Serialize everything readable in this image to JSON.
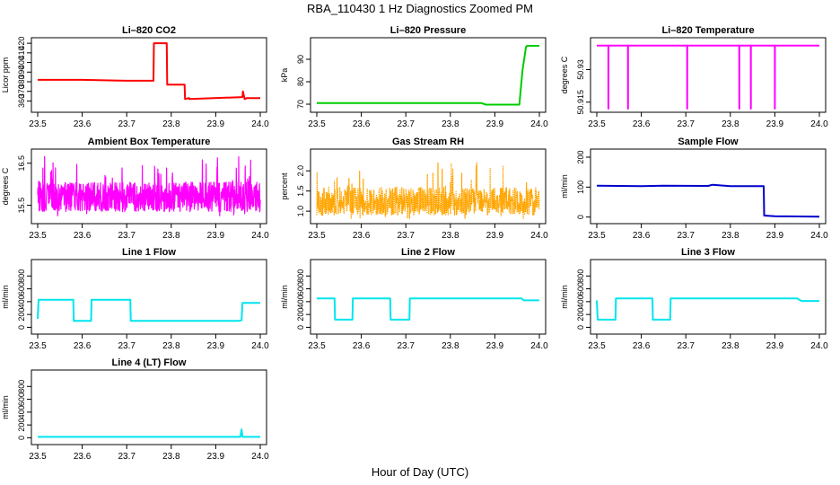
{
  "page": {
    "title": "RBA_110430  1 Hz Diagnostics Zoomed PM",
    "xlabel": "Hour of Day (UTC)"
  },
  "chart_data": [
    {
      "type": "line",
      "title": "Li–820 CO2",
      "ylabel": "Licor ppm",
      "color": "#ff0000",
      "xlim": [
        23.5,
        24.0
      ],
      "ylim": [
        352,
        422
      ],
      "yticks": [
        360,
        370,
        380,
        390,
        400,
        410,
        420
      ],
      "xticks": [
        "23.5",
        "23.6",
        "23.7",
        "23.8",
        "23.9",
        "24.0"
      ],
      "series": [
        {
          "x": [
            23.5,
            23.6,
            23.7,
            23.76,
            23.761,
            23.79,
            23.791,
            23.83,
            23.831,
            23.84,
            23.841,
            23.96,
            23.961,
            23.965,
            23.97,
            24.0
          ],
          "y": [
            382,
            382,
            381,
            381,
            420,
            420,
            377,
            377,
            362,
            363,
            362,
            364,
            370,
            362,
            363,
            363
          ]
        }
      ]
    },
    {
      "type": "line",
      "title": "Li–820 Pressure",
      "ylabel": "kPa",
      "color": "#00cc00",
      "xlim": [
        23.5,
        24.0
      ],
      "ylim": [
        68,
        98
      ],
      "yticks": [
        70,
        80,
        90
      ],
      "xticks": [
        "23.5",
        "23.6",
        "23.7",
        "23.8",
        "23.9",
        "24.0"
      ],
      "series": [
        {
          "x": [
            23.5,
            23.87,
            23.88,
            23.955,
            23.962,
            23.97,
            23.972,
            24.0
          ],
          "y": [
            70.5,
            70.5,
            69.8,
            69.8,
            85,
            95.5,
            96,
            96
          ]
        }
      ]
    },
    {
      "type": "line",
      "title": "Li–820 Temperature",
      "ylabel": "degrees C",
      "color": "#ff00ff",
      "xlim": [
        23.5,
        24.0
      ],
      "ylim": [
        50.912,
        50.943
      ],
      "yticks": [
        50.915,
        50.93
      ],
      "xticks": [
        "23.5",
        "23.6",
        "23.7",
        "23.8",
        "23.9",
        "24.0"
      ],
      "series": [
        {
          "x": [
            23.5,
            23.526,
            23.5261,
            23.5262,
            23.527,
            23.57,
            23.5701,
            23.5702,
            23.703,
            23.7031,
            23.7032,
            23.82,
            23.8201,
            23.8202,
            23.846,
            23.8461,
            23.8462,
            23.9,
            23.9001,
            23.9002,
            24.0
          ],
          "y": [
            50.941,
            50.941,
            50.912,
            50.941,
            50.941,
            50.941,
            50.912,
            50.941,
            50.941,
            50.912,
            50.941,
            50.941,
            50.912,
            50.941,
            50.941,
            50.912,
            50.941,
            50.941,
            50.912,
            50.941,
            50.941
          ]
        }
      ]
    },
    {
      "type": "line",
      "title": "Ambient Box Temperature",
      "ylabel": "degrees C",
      "color": "#ff00ff",
      "xlim": [
        23.5,
        24.0
      ],
      "ylim": [
        15.15,
        16.75
      ],
      "yticks": [
        15.5,
        16.5
      ],
      "xticks": [
        "23.5",
        "23.6",
        "23.7",
        "23.8",
        "23.9",
        "24.0"
      ],
      "noise": {
        "base": 15.7,
        "amp": 0.35,
        "spike": 1.0,
        "lo": 15.25,
        "hi": 16.7
      }
    },
    {
      "type": "line",
      "title": "Gas Stream RH",
      "ylabel": "percent",
      "color": "#ffa500",
      "xlim": [
        23.5,
        24.0
      ],
      "ylim": [
        0.78,
        2.45
      ],
      "yticks": [
        1.0,
        1.5,
        2.0
      ],
      "xticks": [
        "23.5",
        "23.6",
        "23.7",
        "23.8",
        "23.9",
        "24.0"
      ],
      "noise": {
        "base": 1.25,
        "amp": 0.35,
        "spike": 1.1,
        "lo": 0.82,
        "hi": 2.38
      }
    },
    {
      "type": "line",
      "title": "Sample Flow",
      "ylabel": "ml/min",
      "color": "#0000cc",
      "xlim": [
        23.5,
        24.0
      ],
      "ylim": [
        -10,
        215
      ],
      "yticks": [
        0,
        100,
        200
      ],
      "xticks": [
        "23.5",
        "23.6",
        "23.7",
        "23.8",
        "23.9",
        "24.0"
      ],
      "series": [
        {
          "x": [
            23.5,
            23.6,
            23.65,
            23.75,
            23.76,
            23.8,
            23.875,
            23.876,
            23.9,
            24.0
          ],
          "y": [
            105,
            103,
            105,
            104,
            108,
            103,
            103,
            5,
            3,
            1
          ]
        }
      ]
    },
    {
      "type": "line",
      "title": "Line 1 Flow",
      "ylabel": "ml/min",
      "color": "#00e5ee",
      "xlim": [
        23.5,
        24.0
      ],
      "ylim": [
        -50,
        1000
      ],
      "yticks": [
        0,
        200,
        400,
        600,
        800
      ],
      "xticks": [
        "23.5",
        "23.6",
        "23.7",
        "23.8",
        "23.9",
        "24.0"
      ],
      "series": [
        {
          "x": [
            23.5,
            23.502,
            23.58,
            23.581,
            23.62,
            23.621,
            23.708,
            23.709,
            23.95,
            23.958,
            23.96,
            24.0
          ],
          "y": [
            130,
            430,
            430,
            100,
            100,
            430,
            430,
            100,
            100,
            110,
            380,
            380
          ]
        }
      ]
    },
    {
      "type": "line",
      "title": "Line 2 Flow",
      "ylabel": "ml/min",
      "color": "#00e5ee",
      "xlim": [
        23.5,
        24.0
      ],
      "ylim": [
        -50,
        1000
      ],
      "yticks": [
        0,
        200,
        400,
        600,
        800
      ],
      "xticks": [
        "23.5",
        "23.6",
        "23.7",
        "23.8",
        "23.9",
        "24.0"
      ],
      "series": [
        {
          "x": [
            23.5,
            23.54,
            23.541,
            23.58,
            23.581,
            23.665,
            23.666,
            23.708,
            23.709,
            23.96,
            23.965,
            24.0
          ],
          "y": [
            450,
            450,
            120,
            120,
            450,
            450,
            120,
            120,
            450,
            450,
            420,
            420
          ]
        }
      ]
    },
    {
      "type": "line",
      "title": "Line 3 Flow",
      "ylabel": "ml/min",
      "color": "#00e5ee",
      "xlim": [
        23.5,
        24.0
      ],
      "ylim": [
        -50,
        1000
      ],
      "yticks": [
        0,
        200,
        400,
        600,
        800
      ],
      "xticks": [
        "23.5",
        "23.6",
        "23.7",
        "23.8",
        "23.9",
        "24.0"
      ],
      "series": [
        {
          "x": [
            23.5,
            23.502,
            23.542,
            23.543,
            23.625,
            23.626,
            23.665,
            23.666,
            23.95,
            23.96,
            24.0
          ],
          "y": [
            420,
            120,
            120,
            450,
            450,
            120,
            120,
            450,
            450,
            410,
            410
          ]
        }
      ]
    },
    {
      "type": "line",
      "title": "Line 4 (LT) Flow",
      "ylabel": "ml/min",
      "color": "#00e5ee",
      "xlim": [
        23.5,
        24.0
      ],
      "ylim": [
        -50,
        1000
      ],
      "yticks": [
        0,
        200,
        400,
        600,
        800
      ],
      "xticks": [
        "23.5",
        "23.6",
        "23.7",
        "23.8",
        "23.9",
        "24.0"
      ],
      "series": [
        {
          "x": [
            23.5,
            23.955,
            23.956,
            23.958,
            23.96,
            24.0
          ],
          "y": [
            15,
            15,
            50,
            130,
            15,
            15
          ]
        }
      ]
    }
  ]
}
